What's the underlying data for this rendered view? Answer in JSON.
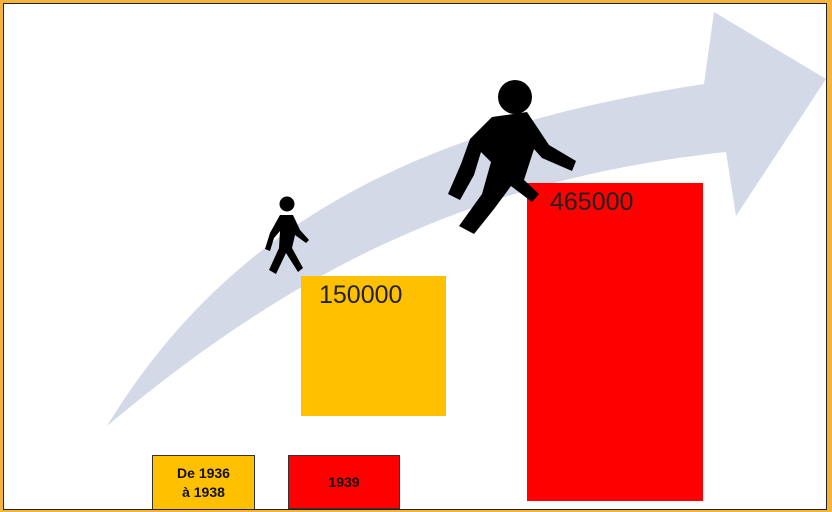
{
  "chart_data": {
    "type": "bar",
    "categories": [
      "De 1936\nà 1938",
      "1939"
    ],
    "values": [
      150000,
      465000
    ],
    "colors": [
      "#ffc000",
      "#ff0000"
    ],
    "ylim": [
      0,
      500000
    ],
    "legend": "bottom-left",
    "grid": false
  },
  "decorations": {
    "arrow_color": "#d3d9e7",
    "figure_color": "#000000",
    "icons": [
      "walking-person-small-icon",
      "walking-person-large-icon",
      "rising-arrow"
    ]
  }
}
